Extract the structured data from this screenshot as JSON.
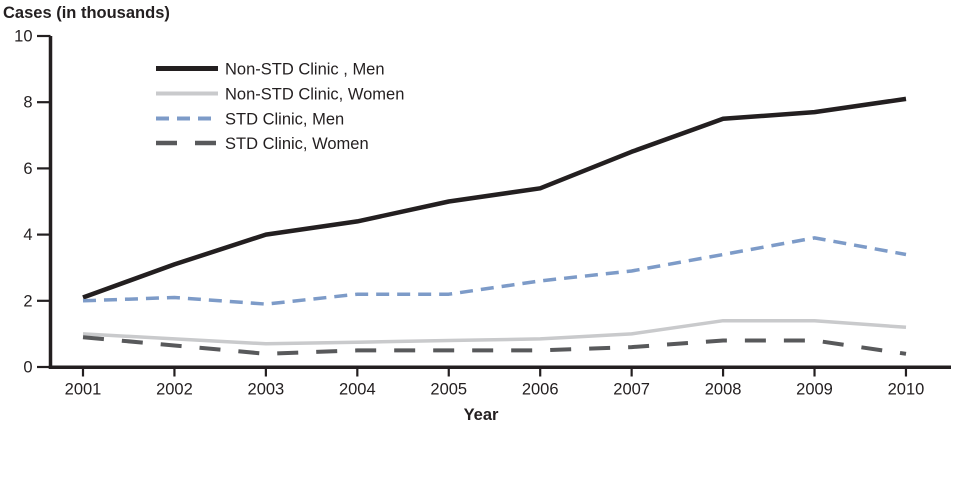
{
  "chart_data": {
    "type": "line",
    "title": "Cases (in thousands)",
    "xlabel": "Year",
    "ylabel": "",
    "x": [
      2001,
      2002,
      2003,
      2004,
      2005,
      2006,
      2007,
      2008,
      2009,
      2010
    ],
    "ylim": [
      0,
      10
    ],
    "yticks": [
      0,
      2,
      4,
      6,
      8,
      10
    ],
    "grid": false,
    "legend_position": "top-left-inside",
    "axis_color": "#231f20",
    "series": [
      {
        "name": "Non-STD Clinic , Men",
        "values": [
          2.1,
          3.1,
          4.0,
          4.4,
          5.0,
          5.4,
          6.5,
          7.5,
          7.7,
          8.1
        ],
        "color": "#231f20",
        "style": "solid",
        "width": 4.5,
        "dash": ""
      },
      {
        "name": "Non-STD Clinic, Women",
        "values": [
          1.0,
          0.85,
          0.7,
          0.75,
          0.8,
          0.85,
          1.0,
          1.4,
          1.4,
          1.2
        ],
        "color": "#c9cacc",
        "style": "solid",
        "width": 3.5,
        "dash": ""
      },
      {
        "name": "STD Clinic, Men",
        "values": [
          2.0,
          2.1,
          1.9,
          2.2,
          2.2,
          2.6,
          2.9,
          3.4,
          3.9,
          3.4
        ],
        "color": "#7d9bc8",
        "style": "dashed",
        "width": 3.5,
        "dash": "13 8"
      },
      {
        "name": "STD Clinic, Women",
        "values": [
          0.9,
          0.65,
          0.4,
          0.5,
          0.5,
          0.5,
          0.6,
          0.8,
          0.8,
          0.4
        ],
        "color": "#58595b",
        "style": "dashed",
        "width": 4,
        "dash": "21 18"
      }
    ]
  }
}
